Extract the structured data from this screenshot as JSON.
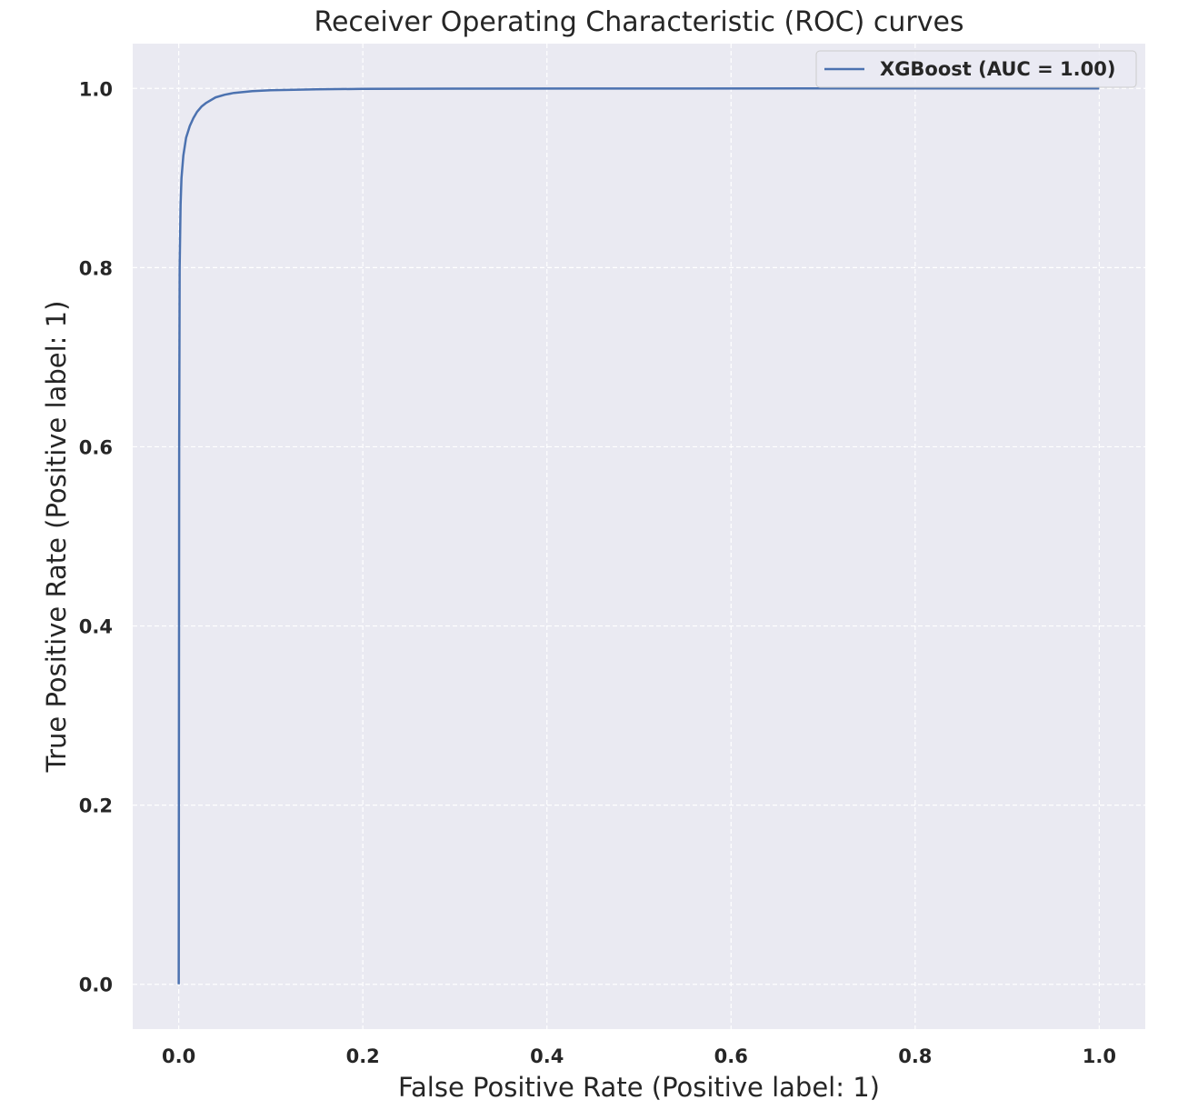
{
  "chart_data": {
    "type": "line",
    "title": "Receiver Operating Characteristic (ROC) curves",
    "xlabel": "False Positive Rate (Positive label: 1)",
    "ylabel": "True Positive Rate (Positive label: 1)",
    "xlim": [
      -0.05,
      1.05
    ],
    "ylim": [
      -0.05,
      1.05
    ],
    "xticks": [
      "0.0",
      "0.2",
      "0.4",
      "0.6",
      "0.8",
      "1.0"
    ],
    "yticks": [
      "0.0",
      "0.2",
      "0.4",
      "0.6",
      "0.8",
      "1.0"
    ],
    "grid": true,
    "legend_position": "top-right",
    "series": [
      {
        "name": "XGBoost (AUC = 1.00)",
        "color": "#4c72b0",
        "x": [
          0.0,
          0.0005,
          0.001,
          0.002,
          0.003,
          0.005,
          0.008,
          0.012,
          0.016,
          0.02,
          0.025,
          0.03,
          0.04,
          0.05,
          0.06,
          0.08,
          0.1,
          0.15,
          0.2,
          0.3,
          0.5,
          0.7,
          1.0
        ],
        "y": [
          0.0,
          0.6,
          0.8,
          0.87,
          0.9,
          0.925,
          0.945,
          0.958,
          0.967,
          0.974,
          0.98,
          0.984,
          0.99,
          0.993,
          0.995,
          0.997,
          0.998,
          0.999,
          0.9995,
          0.9998,
          0.9999,
          1.0,
          1.0
        ]
      }
    ]
  }
}
